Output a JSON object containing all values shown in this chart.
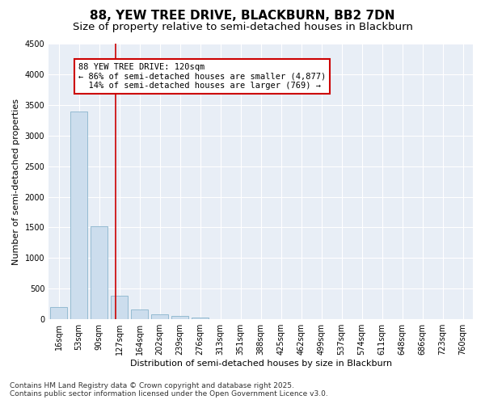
{
  "title_line1": "88, YEW TREE DRIVE, BLACKBURN, BB2 7DN",
  "title_line2": "Size of property relative to semi-detached houses in Blackburn",
  "xlabel": "Distribution of semi-detached houses by size in Blackburn",
  "ylabel": "Number of semi-detached properties",
  "categories": [
    "16sqm",
    "53sqm",
    "90sqm",
    "127sqm",
    "164sqm",
    "202sqm",
    "239sqm",
    "276sqm",
    "313sqm",
    "351sqm",
    "388sqm",
    "425sqm",
    "462sqm",
    "499sqm",
    "537sqm",
    "574sqm",
    "611sqm",
    "648sqm",
    "686sqm",
    "723sqm",
    "760sqm"
  ],
  "values": [
    195,
    3390,
    1520,
    380,
    155,
    85,
    50,
    30,
    5,
    0,
    0,
    0,
    0,
    0,
    0,
    0,
    0,
    0,
    0,
    0,
    0
  ],
  "bar_color": "#ccdded",
  "bar_edge_color": "#8ab4cc",
  "vline_color": "#cc0000",
  "ylim": [
    0,
    4500
  ],
  "yticks": [
    0,
    500,
    1000,
    1500,
    2000,
    2500,
    3000,
    3500,
    4000,
    4500
  ],
  "annotation_line1": "88 YEW TREE DRIVE: 120sqm",
  "annotation_line2": "← 86% of semi-detached houses are smaller (4,877)",
  "annotation_line3": "  14% of semi-detached houses are larger (769) →",
  "annotation_box_color": "#cc0000",
  "annotation_box_bg": "#ffffff",
  "footnote": "Contains HM Land Registry data © Crown copyright and database right 2025.\nContains public sector information licensed under the Open Government Licence v3.0.",
  "bg_color": "#ffffff",
  "plot_bg_color": "#e8eef6",
  "grid_color": "#ffffff",
  "title_fontsize": 11,
  "subtitle_fontsize": 9.5,
  "axis_fontsize": 8,
  "tick_fontsize": 7,
  "footnote_fontsize": 6.5
}
